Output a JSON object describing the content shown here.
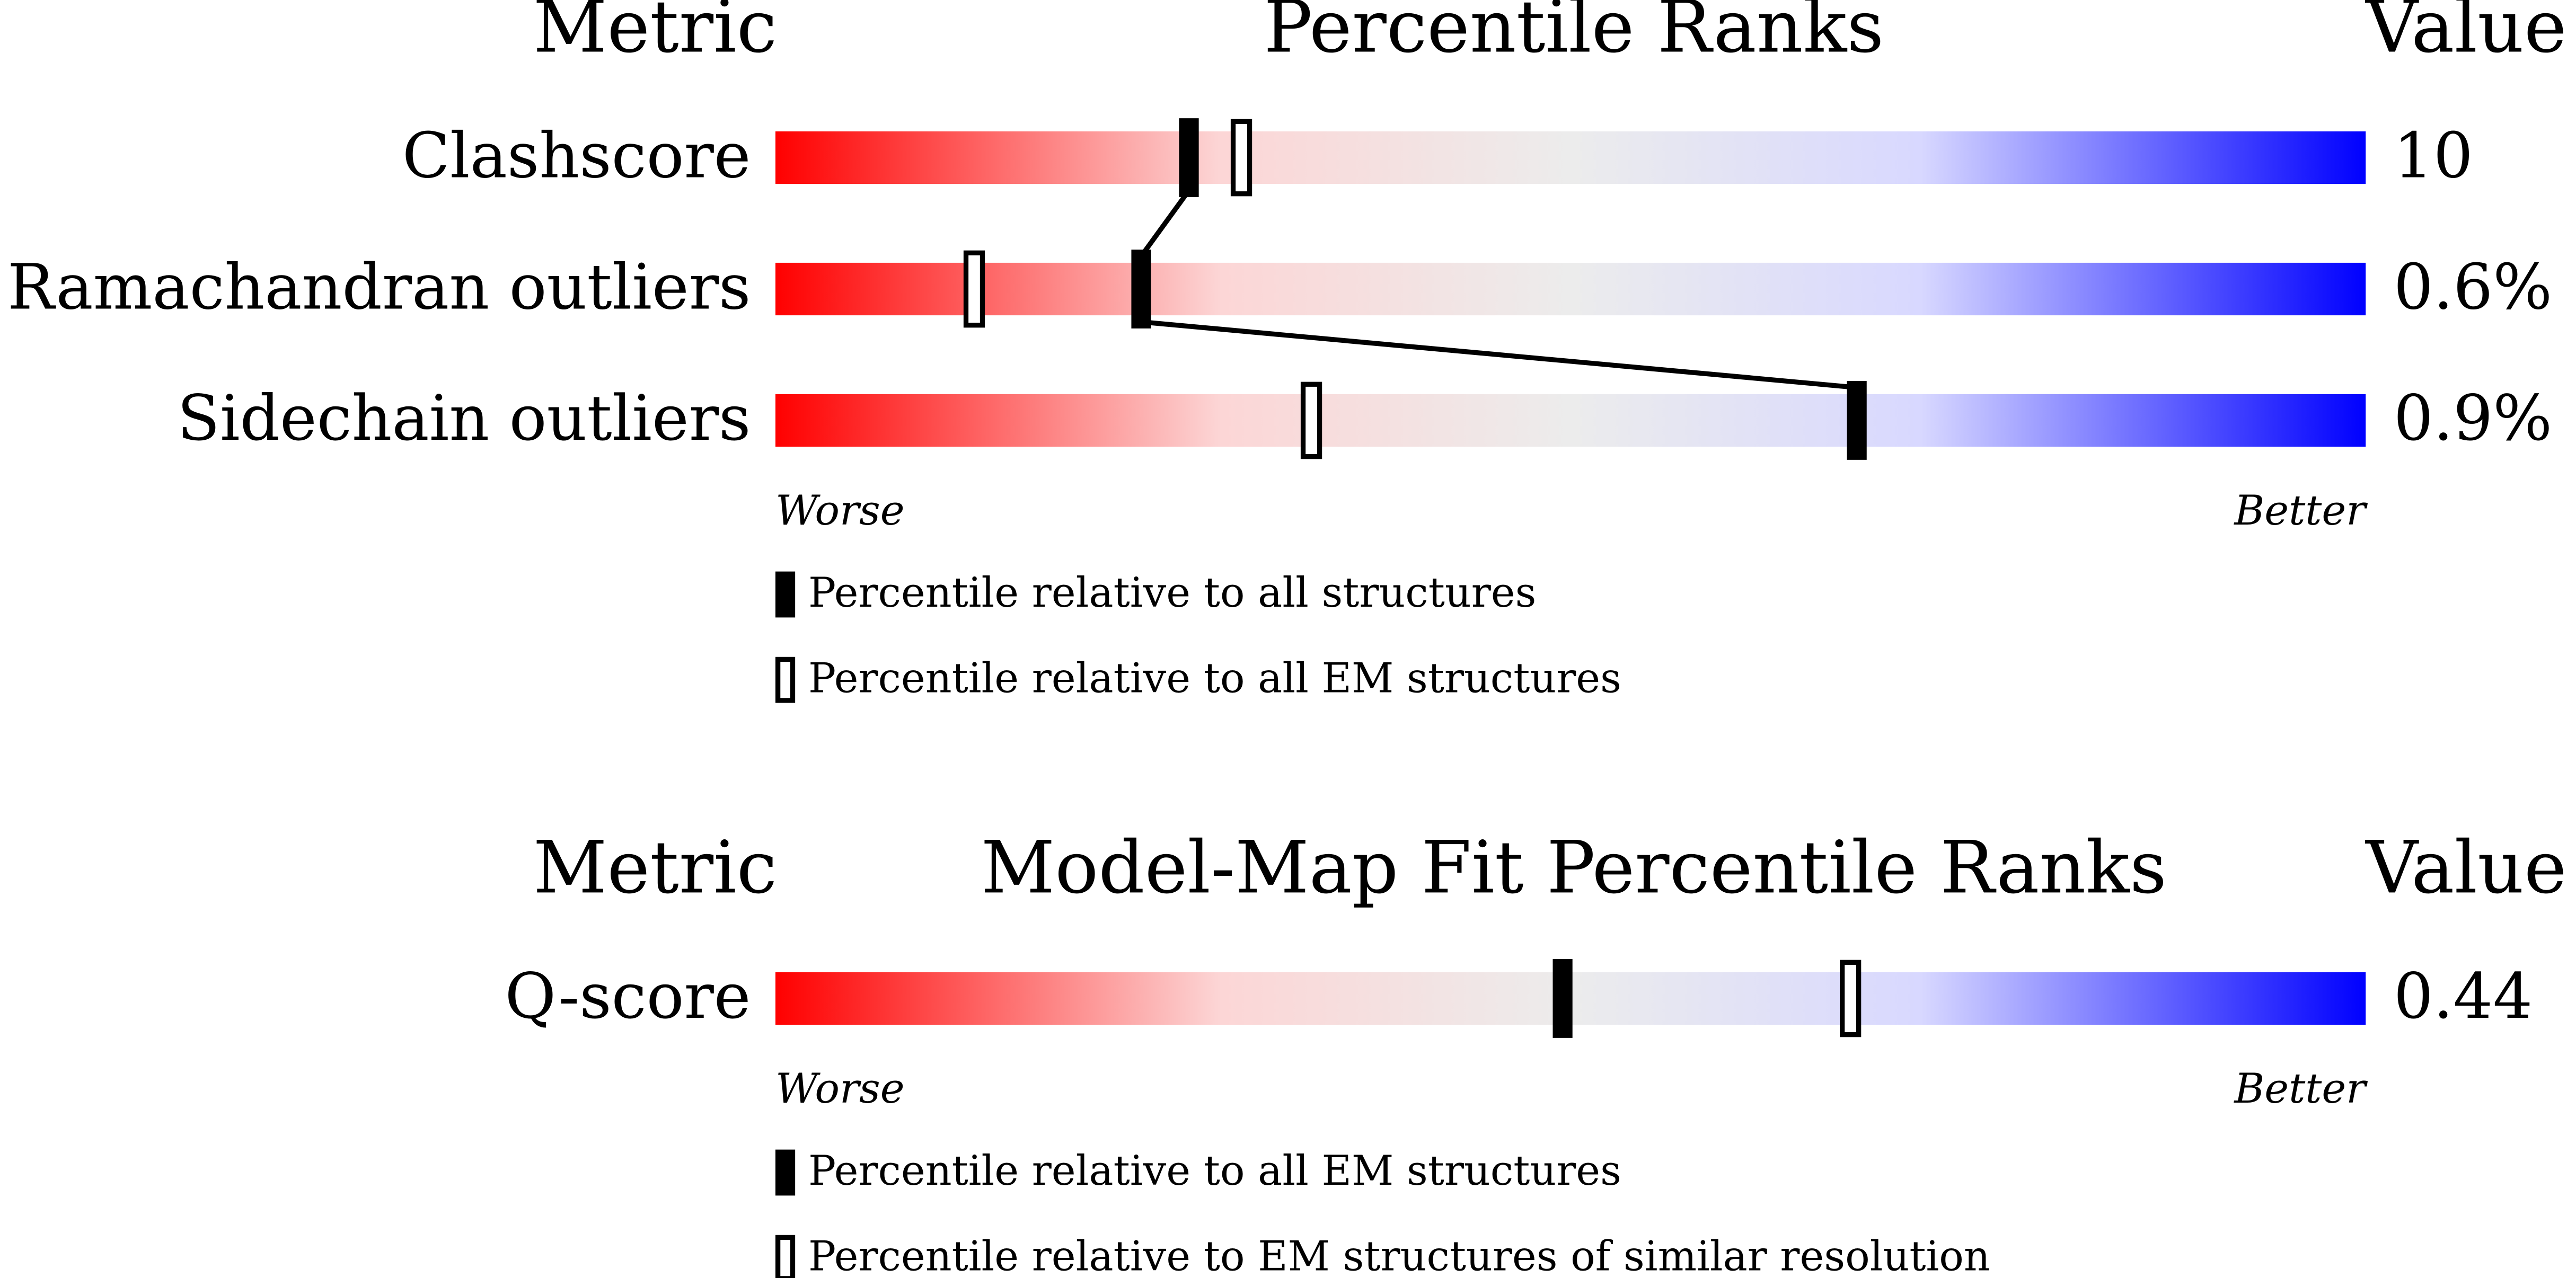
{
  "chart_data": [
    {
      "type": "percentile-slider",
      "column_headers": [
        "Metric",
        "Percentile Ranks",
        "Value"
      ],
      "categories": [
        "Clashscore",
        "Ramachandran outliers",
        "Sidechain outliers"
      ],
      "value_texts": [
        "10",
        "0.6%",
        "0.9%"
      ],
      "xlim": [
        0,
        100
      ],
      "xlabel_left": "Worse",
      "xlabel_right": "Better",
      "connect_first_series": true,
      "series": [
        {
          "name": "Percentile relative to all structures",
          "color": "#000000",
          "filled": true,
          "values": [
            26,
            23,
            68
          ]
        },
        {
          "name": "Percentile relative to all EM structures",
          "color": "#000000",
          "filled": false,
          "values": [
            29.3,
            12.5,
            33.7
          ]
        }
      ]
    },
    {
      "type": "percentile-slider",
      "column_headers": [
        "Metric",
        "Model-Map Fit Percentile Ranks",
        "Value"
      ],
      "categories": [
        "Q-score"
      ],
      "value_texts": [
        "0.44"
      ],
      "xlim": [
        0,
        100
      ],
      "xlabel_left": "Worse",
      "xlabel_right": "Better",
      "connect_first_series": false,
      "series": [
        {
          "name": "Percentile relative to all EM structures",
          "color": "#000000",
          "filled": true,
          "values": [
            49.5
          ]
        },
        {
          "name": "Percentile relative to EM structures of similar resolution",
          "color": "#000000",
          "filled": false,
          "values": [
            67.6
          ]
        }
      ]
    }
  ]
}
